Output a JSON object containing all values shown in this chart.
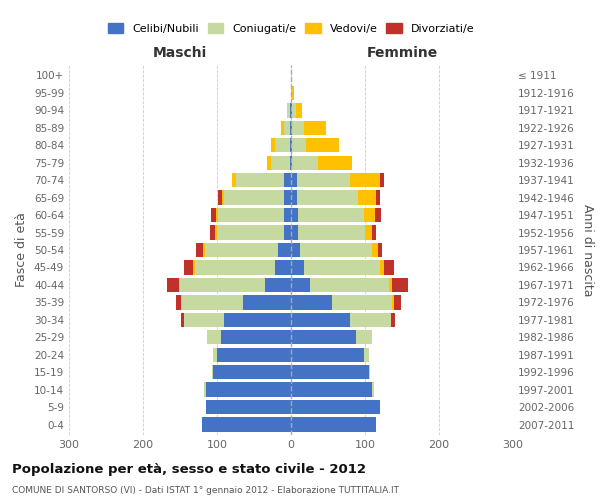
{
  "age_groups": [
    "0-4",
    "5-9",
    "10-14",
    "15-19",
    "20-24",
    "25-29",
    "30-34",
    "35-39",
    "40-44",
    "45-49",
    "50-54",
    "55-59",
    "60-64",
    "65-69",
    "70-74",
    "75-79",
    "80-84",
    "85-89",
    "90-94",
    "95-99",
    "100+"
  ],
  "birth_years": [
    "2007-2011",
    "2002-2006",
    "1997-2001",
    "1992-1996",
    "1987-1991",
    "1982-1986",
    "1977-1981",
    "1972-1976",
    "1967-1971",
    "1962-1966",
    "1957-1961",
    "1952-1956",
    "1947-1951",
    "1942-1946",
    "1937-1941",
    "1932-1936",
    "1927-1931",
    "1922-1926",
    "1917-1921",
    "1912-1916",
    "≤ 1911"
  ],
  "male": {
    "celibi": [
      120,
      115,
      115,
      105,
      100,
      95,
      90,
      65,
      35,
      22,
      18,
      10,
      10,
      10,
      10,
      2,
      2,
      2,
      2,
      0,
      0
    ],
    "coniugati": [
      0,
      0,
      2,
      2,
      5,
      18,
      55,
      82,
      115,
      108,
      98,
      90,
      88,
      80,
      65,
      25,
      20,
      8,
      3,
      0,
      0
    ],
    "vedovi": [
      0,
      0,
      0,
      0,
      0,
      0,
      0,
      2,
      2,
      2,
      3,
      3,
      3,
      3,
      5,
      5,
      5,
      3,
      0,
      0,
      0
    ],
    "divorziati": [
      0,
      0,
      0,
      0,
      0,
      0,
      3,
      7,
      15,
      12,
      10,
      7,
      7,
      5,
      0,
      0,
      0,
      0,
      0,
      0,
      0
    ]
  },
  "female": {
    "nubili": [
      115,
      120,
      110,
      105,
      98,
      88,
      80,
      55,
      25,
      18,
      12,
      10,
      10,
      8,
      8,
      2,
      2,
      2,
      2,
      0,
      0
    ],
    "coniugate": [
      0,
      0,
      2,
      2,
      8,
      22,
      55,
      82,
      108,
      102,
      98,
      90,
      88,
      82,
      72,
      35,
      18,
      15,
      5,
      2,
      0
    ],
    "vedove": [
      0,
      0,
      0,
      0,
      0,
      0,
      0,
      2,
      3,
      5,
      8,
      10,
      15,
      25,
      40,
      45,
      45,
      30,
      8,
      2,
      0
    ],
    "divorziate": [
      0,
      0,
      0,
      0,
      0,
      0,
      5,
      10,
      22,
      14,
      5,
      5,
      8,
      5,
      5,
      0,
      0,
      0,
      0,
      0,
      0
    ]
  },
  "colors": {
    "celibi": "#4472c4",
    "coniugati": "#c5d9a0",
    "vedovi": "#ffc000",
    "divorziati": "#c0312b"
  },
  "xlim": 300,
  "title": "Popolazione per età, sesso e stato civile - 2012",
  "subtitle": "COMUNE DI SANTORSO (VI) - Dati ISTAT 1° gennaio 2012 - Elaborazione TUTTITALIA.IT",
  "ylabel_left": "Fasce di età",
  "ylabel_right": "Anni di nascita",
  "xlabel_male": "Maschi",
  "xlabel_female": "Femmine",
  "legend_labels": [
    "Celibi/Nubili",
    "Coniugati/e",
    "Vedovi/e",
    "Divorziati/e"
  ],
  "background_color": "#ffffff"
}
